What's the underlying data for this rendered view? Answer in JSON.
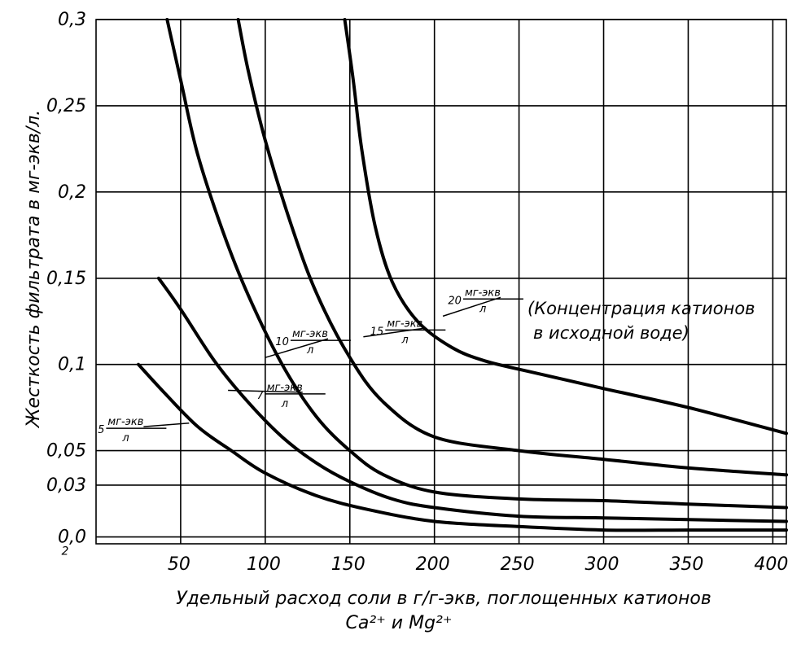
{
  "chart_data": {
    "type": "line",
    "title": "",
    "xlabel": "Удельный расход соли в г/г-экв, поглощенных катионов",
    "xlabel_line2": "Ca²⁺ и Mg²⁺",
    "ylabel": "Жесткость фильтрата в мг-экв/л.",
    "xlim": [
      0,
      408
    ],
    "ylim": [
      -0.004,
      0.3
    ],
    "x_ticks": [
      50,
      100,
      150,
      200,
      250,
      300,
      350,
      400
    ],
    "x_tick_labels": [
      "50",
      "100",
      "150",
      "200",
      "250",
      "300",
      "350",
      "400"
    ],
    "y_ticks": [
      0.0,
      0.03,
      0.05,
      0.1,
      0.15,
      0.2,
      0.25,
      0.3
    ],
    "y_tick_labels": [
      "0,0",
      "0,03",
      "0,05",
      "0,1",
      "0,15",
      "0,2",
      "0,25",
      "0,3"
    ],
    "y_tick_extra_label": "2",
    "grid": true,
    "curve_note_unit": "мг-экв",
    "curve_note_den": "л",
    "curve_note_extra": "(Концентрация катионов",
    "curve_note_extra_line2": "в исходной воде)",
    "series": [
      {
        "name": "5",
        "unit": "мг-экв",
        "den": "л",
        "x": [
          25,
          40,
          60,
          80,
          100,
          130,
          160,
          200,
          250,
          300,
          350,
          408
        ],
        "y": [
          0.1,
          0.084,
          0.064,
          0.05,
          0.037,
          0.024,
          0.016,
          0.009,
          0.006,
          0.004,
          0.004,
          0.004
        ]
      },
      {
        "name": "7",
        "unit": "мг-экв",
        "den": "л",
        "x": [
          37,
          50,
          70,
          90,
          110,
          130,
          150,
          175,
          200,
          250,
          300,
          350,
          408
        ],
        "y": [
          0.15,
          0.132,
          0.102,
          0.078,
          0.058,
          0.043,
          0.032,
          0.022,
          0.017,
          0.012,
          0.011,
          0.01,
          0.009
        ]
      },
      {
        "name": "10",
        "unit": "мг-экв",
        "den": "л",
        "x": [
          42,
          50,
          60,
          75,
          90,
          110,
          130,
          150,
          170,
          200,
          250,
          300,
          350,
          408
        ],
        "y": [
          0.3,
          0.265,
          0.222,
          0.177,
          0.14,
          0.1,
          0.07,
          0.05,
          0.036,
          0.026,
          0.022,
          0.021,
          0.019,
          0.017
        ]
      },
      {
        "name": "15",
        "unit": "мг-экв",
        "den": "л",
        "x": [
          84,
          90,
          100,
          115,
          130,
          150,
          170,
          200,
          250,
          300,
          350,
          408
        ],
        "y": [
          0.3,
          0.27,
          0.23,
          0.182,
          0.142,
          0.104,
          0.078,
          0.058,
          0.05,
          0.045,
          0.04,
          0.036
        ]
      },
      {
        "name": "20",
        "unit": "мг-экв",
        "den": "л",
        "x": [
          147,
          152,
          157,
          165,
          175,
          190,
          210,
          230,
          260,
          300,
          350,
          408
        ],
        "y": [
          0.3,
          0.265,
          0.225,
          0.18,
          0.148,
          0.125,
          0.11,
          0.102,
          0.095,
          0.086,
          0.075,
          0.06
        ]
      }
    ]
  }
}
